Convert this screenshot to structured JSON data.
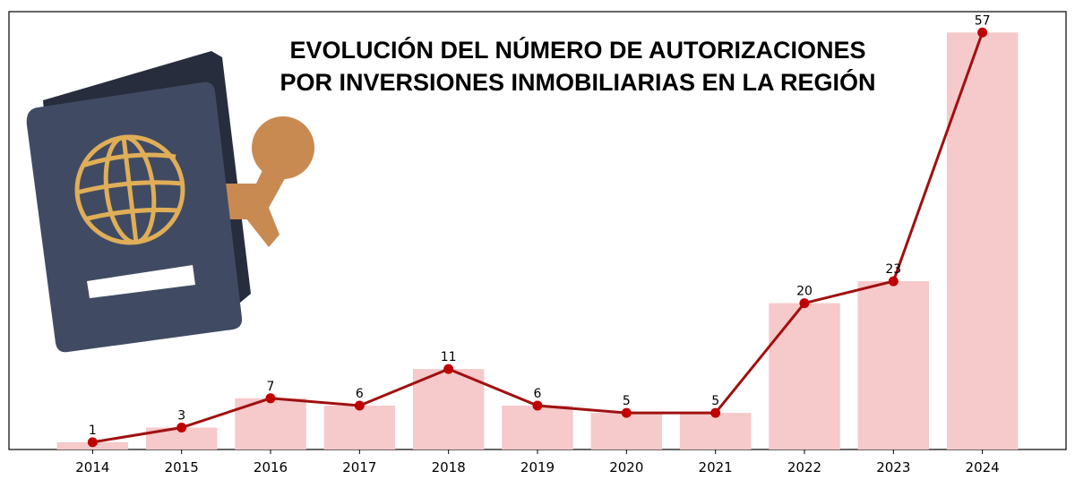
{
  "chart_data": {
    "type": "bar+line",
    "title": [
      "EVOLUCIÓN  DEL NÚMERO DE AUTORIZACIONES",
      "POR INVERSIONES INMOBILIARIAS EN LA REGIÓN"
    ],
    "categories": [
      "2014",
      "2015",
      "2016",
      "2017",
      "2018",
      "2019",
      "2020",
      "2021",
      "2022",
      "2023",
      "2024"
    ],
    "values": [
      1,
      3,
      7,
      6,
      11,
      6,
      5,
      5,
      20,
      23,
      57
    ],
    "xlabel": "",
    "ylabel": "",
    "ylim": [
      0,
      59.85
    ],
    "y_axis_visible": false,
    "grid": false,
    "legend": "none",
    "colors": {
      "bar": "#f6c9ca",
      "line": "#a01010",
      "marker": "#c00000"
    },
    "image": "passport-with-stamp-illustration"
  }
}
